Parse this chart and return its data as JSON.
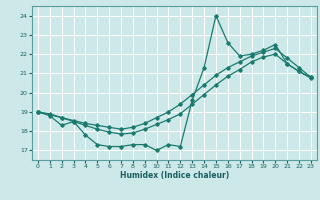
{
  "xlabel": "Humidex (Indice chaleur)",
  "bg_color": "#cce8e8",
  "grid_color": "#ffffff",
  "line_color": "#1a7a6e",
  "xlim": [
    -0.5,
    23.5
  ],
  "ylim": [
    16.5,
    24.5
  ],
  "yticks": [
    17,
    18,
    19,
    20,
    21,
    22,
    23,
    24
  ],
  "xticks": [
    0,
    1,
    2,
    3,
    4,
    5,
    6,
    7,
    8,
    9,
    10,
    11,
    12,
    13,
    14,
    15,
    16,
    17,
    18,
    19,
    20,
    21,
    22,
    23
  ],
  "series1_x": [
    0,
    1,
    2,
    3,
    4,
    5,
    6,
    7,
    8,
    9,
    10,
    11,
    12,
    13,
    14,
    15,
    16,
    17,
    18,
    19,
    20,
    21,
    22,
    23
  ],
  "series1_y": [
    19.0,
    18.8,
    18.3,
    18.5,
    17.8,
    17.3,
    17.2,
    17.2,
    17.3,
    17.3,
    17.0,
    17.3,
    17.2,
    19.6,
    21.3,
    24.0,
    22.6,
    21.9,
    22.0,
    22.2,
    22.5,
    21.5,
    21.1,
    20.8
  ],
  "series2_x": [
    0,
    1,
    2,
    3,
    4,
    5,
    6,
    7,
    8,
    9,
    10,
    11,
    12,
    13,
    14,
    15,
    16,
    17,
    18,
    19,
    20,
    21,
    22,
    23
  ],
  "series2_y": [
    19.0,
    18.85,
    18.7,
    18.55,
    18.4,
    18.3,
    18.2,
    18.1,
    18.2,
    18.4,
    18.7,
    19.0,
    19.4,
    19.9,
    20.4,
    20.9,
    21.3,
    21.6,
    21.9,
    22.1,
    22.3,
    21.8,
    21.3,
    20.8
  ],
  "series3_x": [
    0,
    1,
    2,
    3,
    4,
    5,
    6,
    7,
    8,
    9,
    10,
    11,
    12,
    13,
    14,
    15,
    16,
    17,
    18,
    19,
    20,
    21,
    22,
    23
  ],
  "series3_y": [
    19.0,
    18.9,
    18.7,
    18.5,
    18.3,
    18.1,
    17.95,
    17.85,
    17.9,
    18.1,
    18.35,
    18.6,
    18.9,
    19.4,
    19.9,
    20.4,
    20.85,
    21.2,
    21.6,
    21.85,
    22.0,
    21.5,
    21.1,
    20.75
  ]
}
